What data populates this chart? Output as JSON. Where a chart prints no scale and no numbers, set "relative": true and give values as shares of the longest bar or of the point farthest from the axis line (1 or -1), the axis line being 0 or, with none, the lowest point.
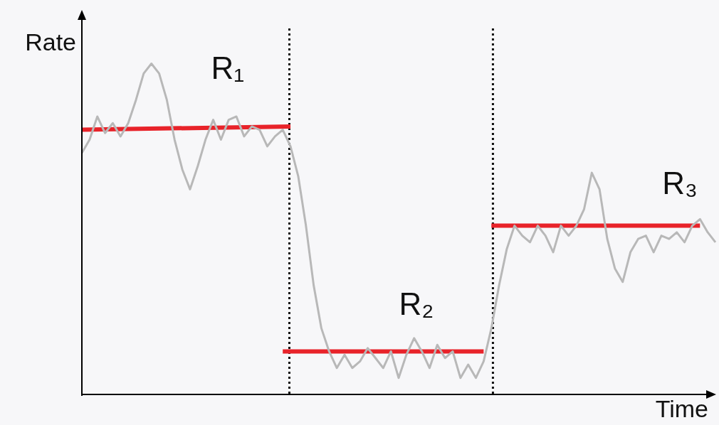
{
  "chart_data": {
    "type": "line",
    "relative": true,
    "xlabel": "Time",
    "ylabel": "Rate",
    "tick_labels": false,
    "grid": false,
    "legend": false,
    "marker": "none",
    "line_style": "solid",
    "categories": [
      null,
      null,
      null,
      null,
      null,
      null,
      null,
      null,
      null,
      null,
      null,
      null,
      null,
      null,
      null,
      null,
      null,
      null,
      null,
      null,
      null,
      null,
      null,
      null,
      null,
      null,
      null,
      null,
      null,
      null,
      null,
      null,
      null,
      null,
      null,
      null,
      null,
      null,
      null,
      null,
      null,
      null,
      null,
      null,
      null,
      null,
      null,
      null,
      null,
      null,
      null,
      null,
      null,
      null,
      null,
      null,
      null,
      null,
      null,
      null,
      null,
      null,
      null,
      null,
      null,
      null,
      null,
      null,
      null,
      null,
      null,
      null,
      null,
      null,
      null,
      null,
      null,
      null,
      null,
      null,
      null,
      null,
      null
    ],
    "series": [
      {
        "color": "#b8b8b8",
        "values": [
          0.73,
          0.77,
          0.84,
          0.79,
          0.82,
          0.78,
          0.82,
          0.89,
          0.97,
          1.0,
          0.97,
          0.89,
          0.77,
          0.68,
          0.62,
          0.69,
          0.77,
          0.83,
          0.77,
          0.83,
          0.84,
          0.78,
          0.81,
          0.8,
          0.75,
          0.78,
          0.8,
          0.75,
          0.66,
          0.51,
          0.33,
          0.2,
          0.13,
          0.08,
          0.12,
          0.08,
          0.1,
          0.14,
          0.11,
          0.08,
          0.13,
          0.05,
          0.12,
          0.17,
          0.13,
          0.08,
          0.15,
          0.11,
          0.13,
          0.05,
          0.09,
          0.05,
          0.1,
          0.2,
          0.33,
          0.44,
          0.51,
          0.48,
          0.46,
          0.51,
          0.48,
          0.43,
          0.51,
          0.48,
          0.51,
          0.56,
          0.67,
          0.62,
          0.47,
          0.38,
          0.34,
          0.43,
          0.47,
          0.48,
          0.43,
          0.48,
          0.47,
          0.49,
          0.46,
          0.51,
          0.53,
          0.49,
          0.46
        ]
      },
      {
        "color": "#e8232a",
        "values": [
          0.8,
          null,
          null,
          null,
          null,
          null,
          null,
          null,
          null,
          null,
          null,
          null,
          null,
          null,
          null,
          null,
          null,
          null,
          null,
          null,
          null,
          null,
          null,
          null,
          null,
          null,
          null,
          0.81,
          null,
          null,
          null,
          null,
          null,
          null,
          null,
          null,
          null,
          null,
          null,
          null,
          null,
          null,
          null,
          null,
          null,
          null,
          null,
          null,
          null,
          null,
          null,
          null,
          null,
          null,
          null,
          null,
          null,
          null,
          null,
          null,
          null,
          null,
          null,
          null,
          null,
          null,
          null,
          null,
          null,
          null,
          null,
          null,
          null,
          null,
          null,
          null,
          null,
          null,
          null,
          null,
          null,
          null,
          null
        ]
      },
      {
        "color": "#e8232a",
        "values": [
          null,
          null,
          null,
          null,
          null,
          null,
          null,
          null,
          null,
          null,
          null,
          null,
          null,
          null,
          null,
          null,
          null,
          null,
          null,
          null,
          null,
          null,
          null,
          null,
          null,
          null,
          0.13,
          null,
          null,
          null,
          null,
          null,
          null,
          null,
          null,
          null,
          null,
          null,
          null,
          null,
          null,
          null,
          null,
          null,
          null,
          null,
          null,
          null,
          null,
          null,
          null,
          null,
          0.13,
          null,
          null,
          null,
          null,
          null,
          null,
          null,
          null,
          null,
          null,
          null,
          null,
          null,
          null,
          null,
          null,
          null,
          null,
          null,
          null,
          null,
          null,
          null,
          null,
          null,
          null,
          null,
          null,
          null,
          null
        ]
      },
      {
        "color": "#e8232a",
        "values": [
          null,
          null,
          null,
          null,
          null,
          null,
          null,
          null,
          null,
          null,
          null,
          null,
          null,
          null,
          null,
          null,
          null,
          null,
          null,
          null,
          null,
          null,
          null,
          null,
          null,
          null,
          null,
          null,
          null,
          null,
          null,
          null,
          null,
          null,
          null,
          null,
          null,
          null,
          null,
          null,
          null,
          null,
          null,
          null,
          null,
          null,
          null,
          null,
          null,
          null,
          null,
          null,
          null,
          0.51,
          null,
          null,
          null,
          null,
          null,
          null,
          null,
          null,
          null,
          null,
          null,
          null,
          null,
          null,
          null,
          null,
          null,
          null,
          null,
          null,
          null,
          null,
          null,
          null,
          null,
          null,
          0.51,
          null,
          null
        ]
      }
    ],
    "annotations": [
      "R₁",
      "R₂",
      "R₃"
    ]
  }
}
